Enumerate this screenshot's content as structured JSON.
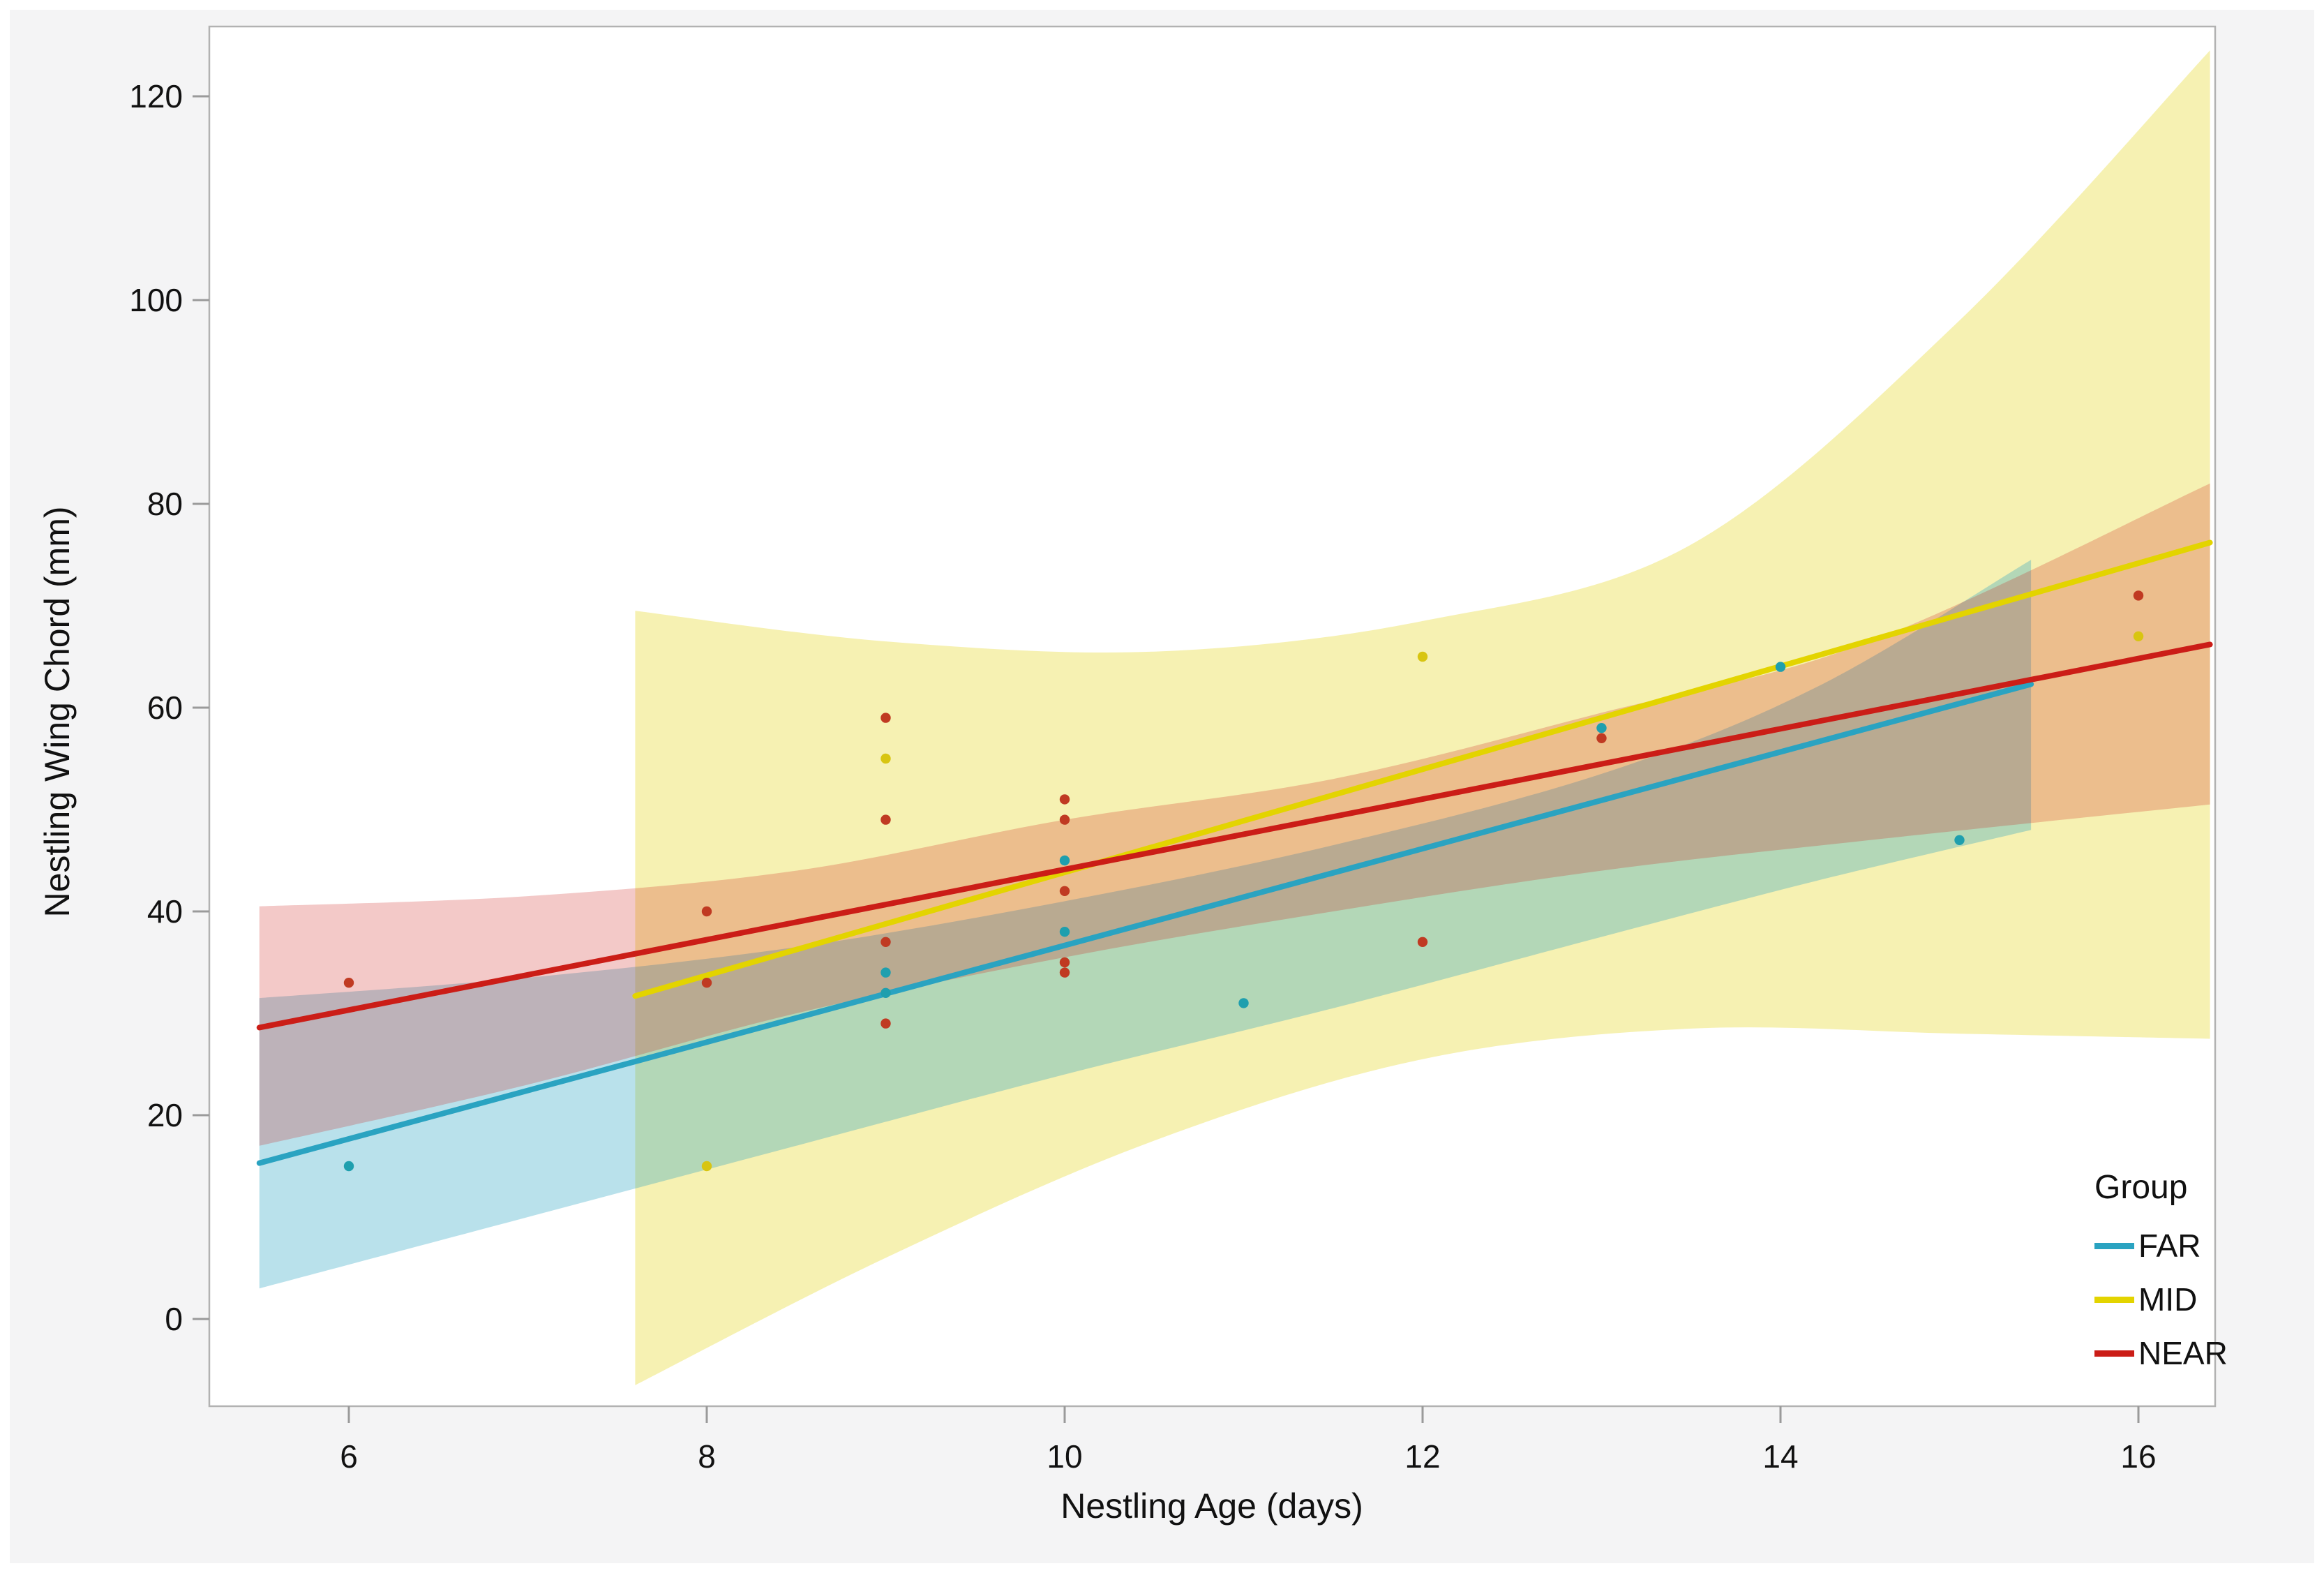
{
  "figure": {
    "outer_background": "#ffffff",
    "panel_background": "#f4f4f5",
    "plot_background": "#ffffff",
    "frame_color": "#b2b2b2",
    "tick_color": "#9a9a9a",
    "text_color": "#111111"
  },
  "legend": {
    "title": "Group",
    "items": [
      {
        "id": "far",
        "label": "FAR",
        "color": "#2aa3c1"
      },
      {
        "id": "mid",
        "label": "MID",
        "color": "#e3d400"
      },
      {
        "id": "near",
        "label": "NEAR",
        "color": "#cb1d17"
      }
    ]
  },
  "chart_data": {
    "type": "scatter",
    "title": "",
    "xlabel": "Nestling Age (days)",
    "ylabel": "Nestling Wing Chord (mm)",
    "xlim": [
      5.22,
      16.43
    ],
    "ylim": [
      -8.5,
      126.5
    ],
    "x_ticks": [
      6,
      8,
      10,
      12,
      14,
      16
    ],
    "y_ticks": [
      0,
      20,
      40,
      60,
      80,
      100,
      120
    ],
    "grid": false,
    "legend_title": "Group",
    "legend_position": "inside-bottom-right",
    "series": [
      {
        "name": "FAR",
        "color": "#2aa3c1",
        "dot_color": "#1f9fae",
        "points": [
          [
            6,
            15
          ],
          [
            9,
            34
          ],
          [
            9,
            32
          ],
          [
            10,
            45
          ],
          [
            10,
            38
          ],
          [
            11,
            31
          ],
          [
            13,
            58
          ],
          [
            14,
            64
          ],
          [
            15,
            47
          ]
        ],
        "fit_line": {
          "x1": 5.5,
          "y1": 15.3,
          "x2": 15.4,
          "y2": 62.3
        },
        "band": {
          "fill": "#2aa3c1",
          "opacity": 0.33,
          "upper": [
            [
              5.5,
              31.5
            ],
            [
              7,
              33.5
            ],
            [
              8.5,
              36.5
            ],
            [
              10,
              41
            ],
            [
              11.5,
              46.5
            ],
            [
              13,
              53.5
            ],
            [
              14.2,
              62
            ],
            [
              15.4,
              74.5
            ]
          ],
          "lower": [
            [
              5.5,
              3
            ],
            [
              7,
              10
            ],
            [
              8.5,
              17
            ],
            [
              10,
              24
            ],
            [
              11.5,
              30.5
            ],
            [
              13,
              37.5
            ],
            [
              14.2,
              43
            ],
            [
              15.4,
              48
            ]
          ]
        }
      },
      {
        "name": "MID",
        "color": "#e3d400",
        "dot_color": "#d8c511",
        "points": [
          [
            8,
            15
          ],
          [
            9,
            55
          ],
          [
            12,
            65
          ],
          [
            16,
            67
          ]
        ],
        "fit_line": {
          "x1": 7.6,
          "y1": 31.7,
          "x2": 16.4,
          "y2": 76.2
        },
        "band": {
          "fill": "#e0d200",
          "opacity": 0.3,
          "upper": [
            [
              7.6,
              69.5
            ],
            [
              9,
              66.5
            ],
            [
              10.5,
              65.5
            ],
            [
              12,
              68.5
            ],
            [
              13.5,
              76
            ],
            [
              15,
              98
            ],
            [
              16.4,
              124.5
            ]
          ],
          "lower": [
            [
              7.6,
              -6.5
            ],
            [
              9,
              6
            ],
            [
              10.5,
              17.5
            ],
            [
              12,
              25.5
            ],
            [
              13.5,
              28.5
            ],
            [
              15,
              28
            ],
            [
              16.4,
              27.5
            ]
          ]
        }
      },
      {
        "name": "NEAR",
        "color": "#cb1d17",
        "dot_color": "#c03a22",
        "points": [
          [
            6,
            33
          ],
          [
            8,
            40
          ],
          [
            8,
            33
          ],
          [
            9,
            59
          ],
          [
            9,
            49
          ],
          [
            9,
            37
          ],
          [
            9,
            29
          ],
          [
            10,
            51
          ],
          [
            10,
            49
          ],
          [
            10,
            42
          ],
          [
            10,
            35
          ],
          [
            10,
            34
          ],
          [
            12,
            37
          ],
          [
            13,
            57
          ],
          [
            16,
            71
          ]
        ],
        "fit_line": {
          "x1": 5.5,
          "y1": 28.6,
          "x2": 16.4,
          "y2": 66.2
        },
        "band": {
          "fill": "#cb1d17",
          "opacity": 0.24,
          "upper": [
            [
              5.5,
              40.5
            ],
            [
              7,
              41.5
            ],
            [
              8.5,
              44
            ],
            [
              10,
              49
            ],
            [
              11.5,
              53
            ],
            [
              13,
              59.5
            ],
            [
              14.5,
              66.5
            ],
            [
              16.4,
              82
            ]
          ],
          "lower": [
            [
              5.5,
              17
            ],
            [
              7,
              23
            ],
            [
              8.5,
              30
            ],
            [
              10,
              35.5
            ],
            [
              11.5,
              40
            ],
            [
              13,
              44
            ],
            [
              14.5,
              47
            ],
            [
              16.4,
              50.5
            ]
          ]
        }
      }
    ]
  }
}
